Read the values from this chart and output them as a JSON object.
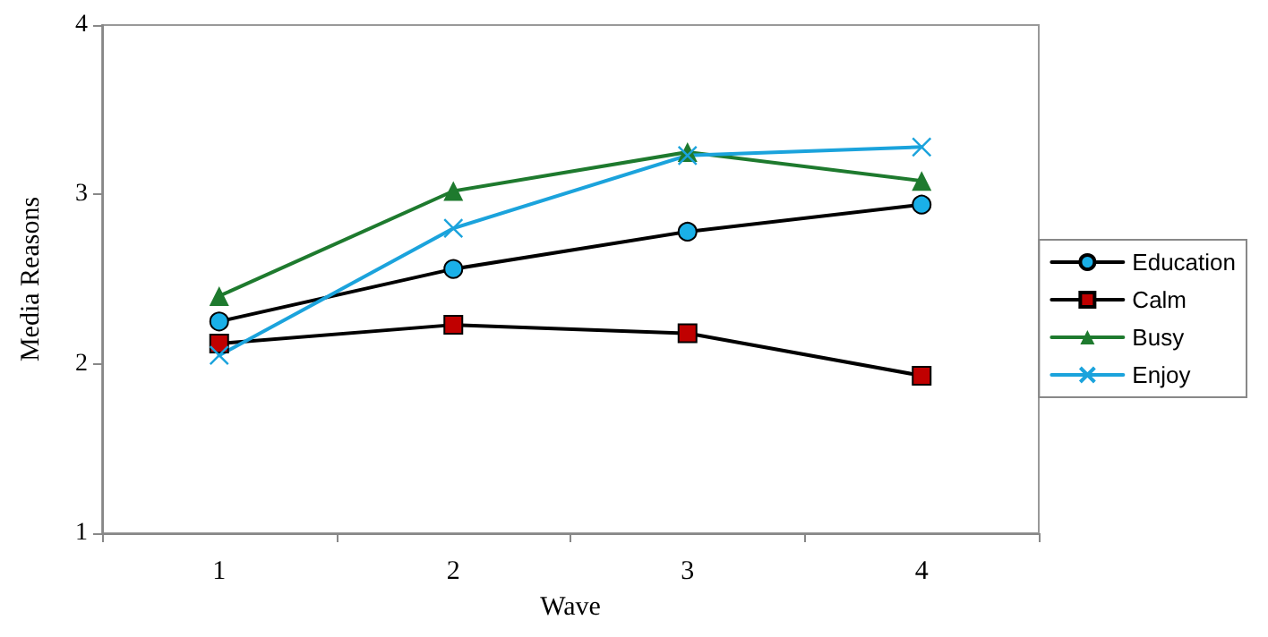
{
  "chart_data": {
    "type": "line",
    "xlabel": "Wave",
    "ylabel": "Media Reasons",
    "categories": [
      "1",
      "2",
      "3",
      "4"
    ],
    "series": [
      {
        "name": "Education",
        "color": "#000000",
        "colors": [
          "#1ab0e8",
          "#1ab0e8",
          "#1ab0e8",
          "#1ab0e8"
        ],
        "marker": "circle",
        "values": [
          2.25,
          2.56,
          2.78,
          2.94
        ]
      },
      {
        "name": "Calm",
        "color": "#000000",
        "colors": [
          "#c00000",
          "#c00000",
          "#c00000",
          "#c00000"
        ],
        "marker": "square",
        "values": [
          2.12,
          2.23,
          2.18,
          1.93
        ]
      },
      {
        "name": "Busy",
        "color": "#1e7a2e",
        "marker": "triangle",
        "values": [
          2.4,
          3.02,
          3.25,
          3.08
        ]
      },
      {
        "name": "Enjoy",
        "color": "#1ba3dc",
        "marker": "cross",
        "values": [
          2.05,
          2.8,
          3.23,
          3.28
        ]
      }
    ],
    "ylim": [
      1,
      4
    ],
    "yticks": [
      1,
      2,
      3,
      4
    ],
    "grid": false,
    "legend": "right"
  }
}
